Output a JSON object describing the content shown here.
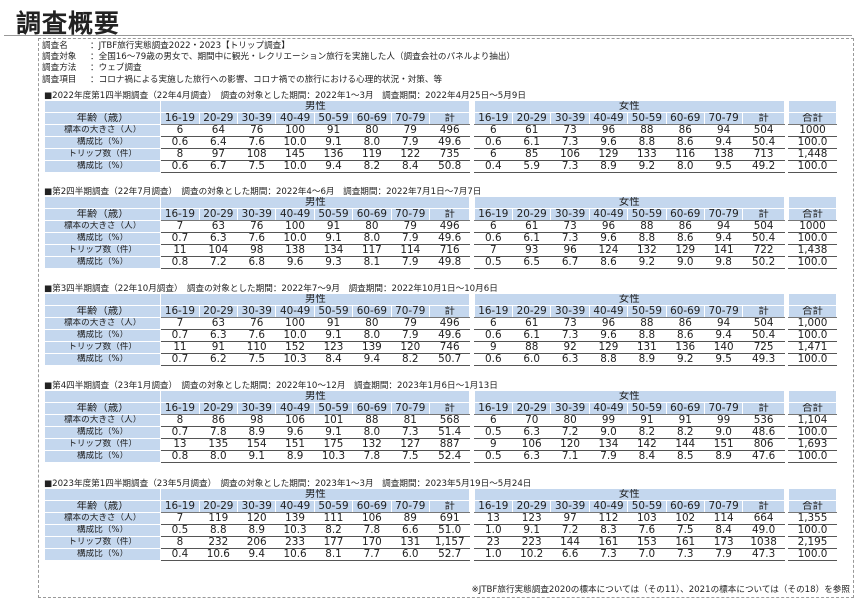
{
  "page": {
    "title": "調査概要"
  },
  "info": [
    {
      "label": "調査名",
      "value": "：JTBF旅行実態調査2022・2023【トリップ調査】"
    },
    {
      "label": "調査対象",
      "value": "：全国16～79歳の男女で、期間中に観光・レクリエーション旅行を実施した人（調査会社のパネルより抽出）"
    },
    {
      "label": "調査方法",
      "value": "：ウェブ調査"
    },
    {
      "label": "調査項目",
      "value": "：コロナ禍による実施した旅行への影響、コロナ禍での旅行における心理的状況・対策、等"
    }
  ],
  "table_headers": {
    "male": "男性",
    "female": "女性",
    "age_label": "年齢（歳）",
    "ages": [
      "16-19",
      "20-29",
      "30-39",
      "40-49",
      "50-59",
      "60-69",
      "70-79",
      "計"
    ],
    "total": "合計"
  },
  "sections": [
    {
      "title": "■2022年度第1四半期調査（22年4月調査）　調査の対象とした期間：2022年1～3月　調査期間：2022年4月25日～5月9日",
      "rows": [
        {
          "label": "標本の大きさ（人）",
          "male": [
            "6",
            "64",
            "76",
            "100",
            "91",
            "80",
            "79",
            "496"
          ],
          "female": [
            "6",
            "61",
            "73",
            "96",
            "88",
            "86",
            "94",
            "504"
          ],
          "total": "1000"
        },
        {
          "label": "構成比（%）",
          "male": [
            "0.6",
            "6.4",
            "7.6",
            "10.0",
            "9.1",
            "8.0",
            "7.9",
            "49.6"
          ],
          "female": [
            "0.6",
            "6.1",
            "7.3",
            "9.6",
            "8.8",
            "8.6",
            "9.4",
            "50.4"
          ],
          "total": "100.0"
        },
        {
          "label": "トリップ数（件）",
          "male": [
            "8",
            "97",
            "108",
            "145",
            "136",
            "119",
            "122",
            "735"
          ],
          "female": [
            "6",
            "85",
            "106",
            "129",
            "133",
            "116",
            "138",
            "713"
          ],
          "total": "1,448"
        },
        {
          "label": "構成比（%）",
          "male": [
            "0.6",
            "6.7",
            "7.5",
            "10.0",
            "9.4",
            "8.2",
            "8.4",
            "50.8"
          ],
          "female": [
            "0.4",
            "5.9",
            "7.3",
            "8.9",
            "9.2",
            "8.0",
            "9.5",
            "49.2"
          ],
          "total": "100.0"
        }
      ]
    },
    {
      "title": "■第2四半期調査（22年7月調査）　調査の対象とした期間：2022年4～6月　調査期間：2022年7月1日～7月7日",
      "rows": [
        {
          "label": "標本の大きさ（人）",
          "male": [
            "7",
            "63",
            "76",
            "100",
            "91",
            "80",
            "79",
            "496"
          ],
          "female": [
            "6",
            "61",
            "73",
            "96",
            "88",
            "86",
            "94",
            "504"
          ],
          "total": "1000"
        },
        {
          "label": "構成比（%）",
          "male": [
            "0.7",
            "6.3",
            "7.6",
            "10.0",
            "9.1",
            "8.0",
            "7.9",
            "49.6"
          ],
          "female": [
            "0.6",
            "6.1",
            "7.3",
            "9.6",
            "8.8",
            "8.6",
            "9.4",
            "50.4"
          ],
          "total": "100.0"
        },
        {
          "label": "トリップ数（件）",
          "male": [
            "11",
            "104",
            "98",
            "138",
            "134",
            "117",
            "114",
            "716"
          ],
          "female": [
            "7",
            "93",
            "96",
            "124",
            "132",
            "129",
            "141",
            "722"
          ],
          "total": "1,438"
        },
        {
          "label": "構成比（%）",
          "male": [
            "0.8",
            "7.2",
            "6.8",
            "9.6",
            "9.3",
            "8.1",
            "7.9",
            "49.8"
          ],
          "female": [
            "0.5",
            "6.5",
            "6.7",
            "8.6",
            "9.2",
            "9.0",
            "9.8",
            "50.2"
          ],
          "total": "100.0"
        }
      ]
    },
    {
      "title": "■第3四半期調査（22年10月調査）　調査の対象とした期間：2022年7～9月　調査期間：2022年10月1日～10月6日",
      "rows": [
        {
          "label": "標本の大きさ（人）",
          "male": [
            "7",
            "63",
            "76",
            "100",
            "91",
            "80",
            "79",
            "496"
          ],
          "female": [
            "6",
            "61",
            "73",
            "96",
            "88",
            "86",
            "94",
            "504"
          ],
          "total": "1,000"
        },
        {
          "label": "構成比（%）",
          "male": [
            "0.7",
            "6.3",
            "7.6",
            "10.0",
            "9.1",
            "8.0",
            "7.9",
            "49.6"
          ],
          "female": [
            "0.6",
            "6.1",
            "7.3",
            "9.6",
            "8.8",
            "8.6",
            "9.4",
            "50.4"
          ],
          "total": "100.0"
        },
        {
          "label": "トリップ数（件）",
          "male": [
            "11",
            "91",
            "110",
            "152",
            "123",
            "139",
            "120",
            "746"
          ],
          "female": [
            "9",
            "88",
            "92",
            "129",
            "131",
            "136",
            "140",
            "725"
          ],
          "total": "1,471"
        },
        {
          "label": "構成比（%）",
          "male": [
            "0.7",
            "6.2",
            "7.5",
            "10.3",
            "8.4",
            "9.4",
            "8.2",
            "50.7"
          ],
          "female": [
            "0.6",
            "6.0",
            "6.3",
            "8.8",
            "8.9",
            "9.2",
            "9.5",
            "49.3"
          ],
          "total": "100.0"
        }
      ]
    },
    {
      "title": "■第4四半期調査（23年1月調査）　調査の対象とした期間：2022年10～12月　調査期間：2023年1月6日～1月13日",
      "rows": [
        {
          "label": "標本の大きさ（人）",
          "male": [
            "8",
            "86",
            "98",
            "106",
            "101",
            "88",
            "81",
            "568"
          ],
          "female": [
            "6",
            "70",
            "80",
            "99",
            "91",
            "91",
            "99",
            "536"
          ],
          "total": "1,104"
        },
        {
          "label": "構成比（%）",
          "male": [
            "0.7",
            "7.8",
            "8.9",
            "9.6",
            "9.1",
            "8.0",
            "7.3",
            "51.4"
          ],
          "female": [
            "0.5",
            "6.3",
            "7.2",
            "9.0",
            "8.2",
            "8.2",
            "9.0",
            "48.6"
          ],
          "total": "100.0"
        },
        {
          "label": "トリップ数（件）",
          "male": [
            "13",
            "135",
            "154",
            "151",
            "175",
            "132",
            "127",
            "887"
          ],
          "female": [
            "9",
            "106",
            "120",
            "134",
            "142",
            "144",
            "151",
            "806"
          ],
          "total": "1,693"
        },
        {
          "label": "構成比（%）",
          "male": [
            "0.8",
            "8.0",
            "9.1",
            "8.9",
            "10.3",
            "7.8",
            "7.5",
            "52.4"
          ],
          "female": [
            "0.5",
            "6.3",
            "7.1",
            "7.9",
            "8.4",
            "8.5",
            "8.9",
            "47.6"
          ],
          "total": "100.0"
        }
      ]
    },
    {
      "title": "■2023年度第1四半期調査（23年5月調査）　調査の対象とした期間：2023年1～3月　調査期間：2023年5月19日～5月24日",
      "rows": [
        {
          "label": "標本の大きさ（人）",
          "male": [
            "7",
            "119",
            "120",
            "139",
            "111",
            "106",
            "89",
            "691"
          ],
          "female": [
            "13",
            "123",
            "97",
            "112",
            "103",
            "102",
            "114",
            "664"
          ],
          "total": "1,355"
        },
        {
          "label": "構成比（%）",
          "male": [
            "0.5",
            "8.8",
            "8.9",
            "10.3",
            "8.2",
            "7.8",
            "6.6",
            "51.0"
          ],
          "female": [
            "1.0",
            "9.1",
            "7.2",
            "8.3",
            "7.6",
            "7.5",
            "8.4",
            "49.0"
          ],
          "total": "100.0"
        },
        {
          "label": "トリップ数（件）",
          "male": [
            "8",
            "232",
            "206",
            "233",
            "177",
            "170",
            "131",
            "1,157"
          ],
          "female": [
            "23",
            "223",
            "144",
            "161",
            "153",
            "161",
            "173",
            "1038"
          ],
          "total": "2,195"
        },
        {
          "label": "構成比（%）",
          "male": [
            "0.4",
            "10.6",
            "9.4",
            "10.6",
            "8.1",
            "7.7",
            "6.0",
            "52.7"
          ],
          "female": [
            "1.0",
            "10.2",
            "6.6",
            "7.3",
            "7.0",
            "7.3",
            "7.9",
            "47.3"
          ],
          "total": "100.0"
        }
      ]
    }
  ],
  "footnote": "※JTBF旅行実態調査2020の標本については（その11）、2021の標本については（その18）を参照"
}
